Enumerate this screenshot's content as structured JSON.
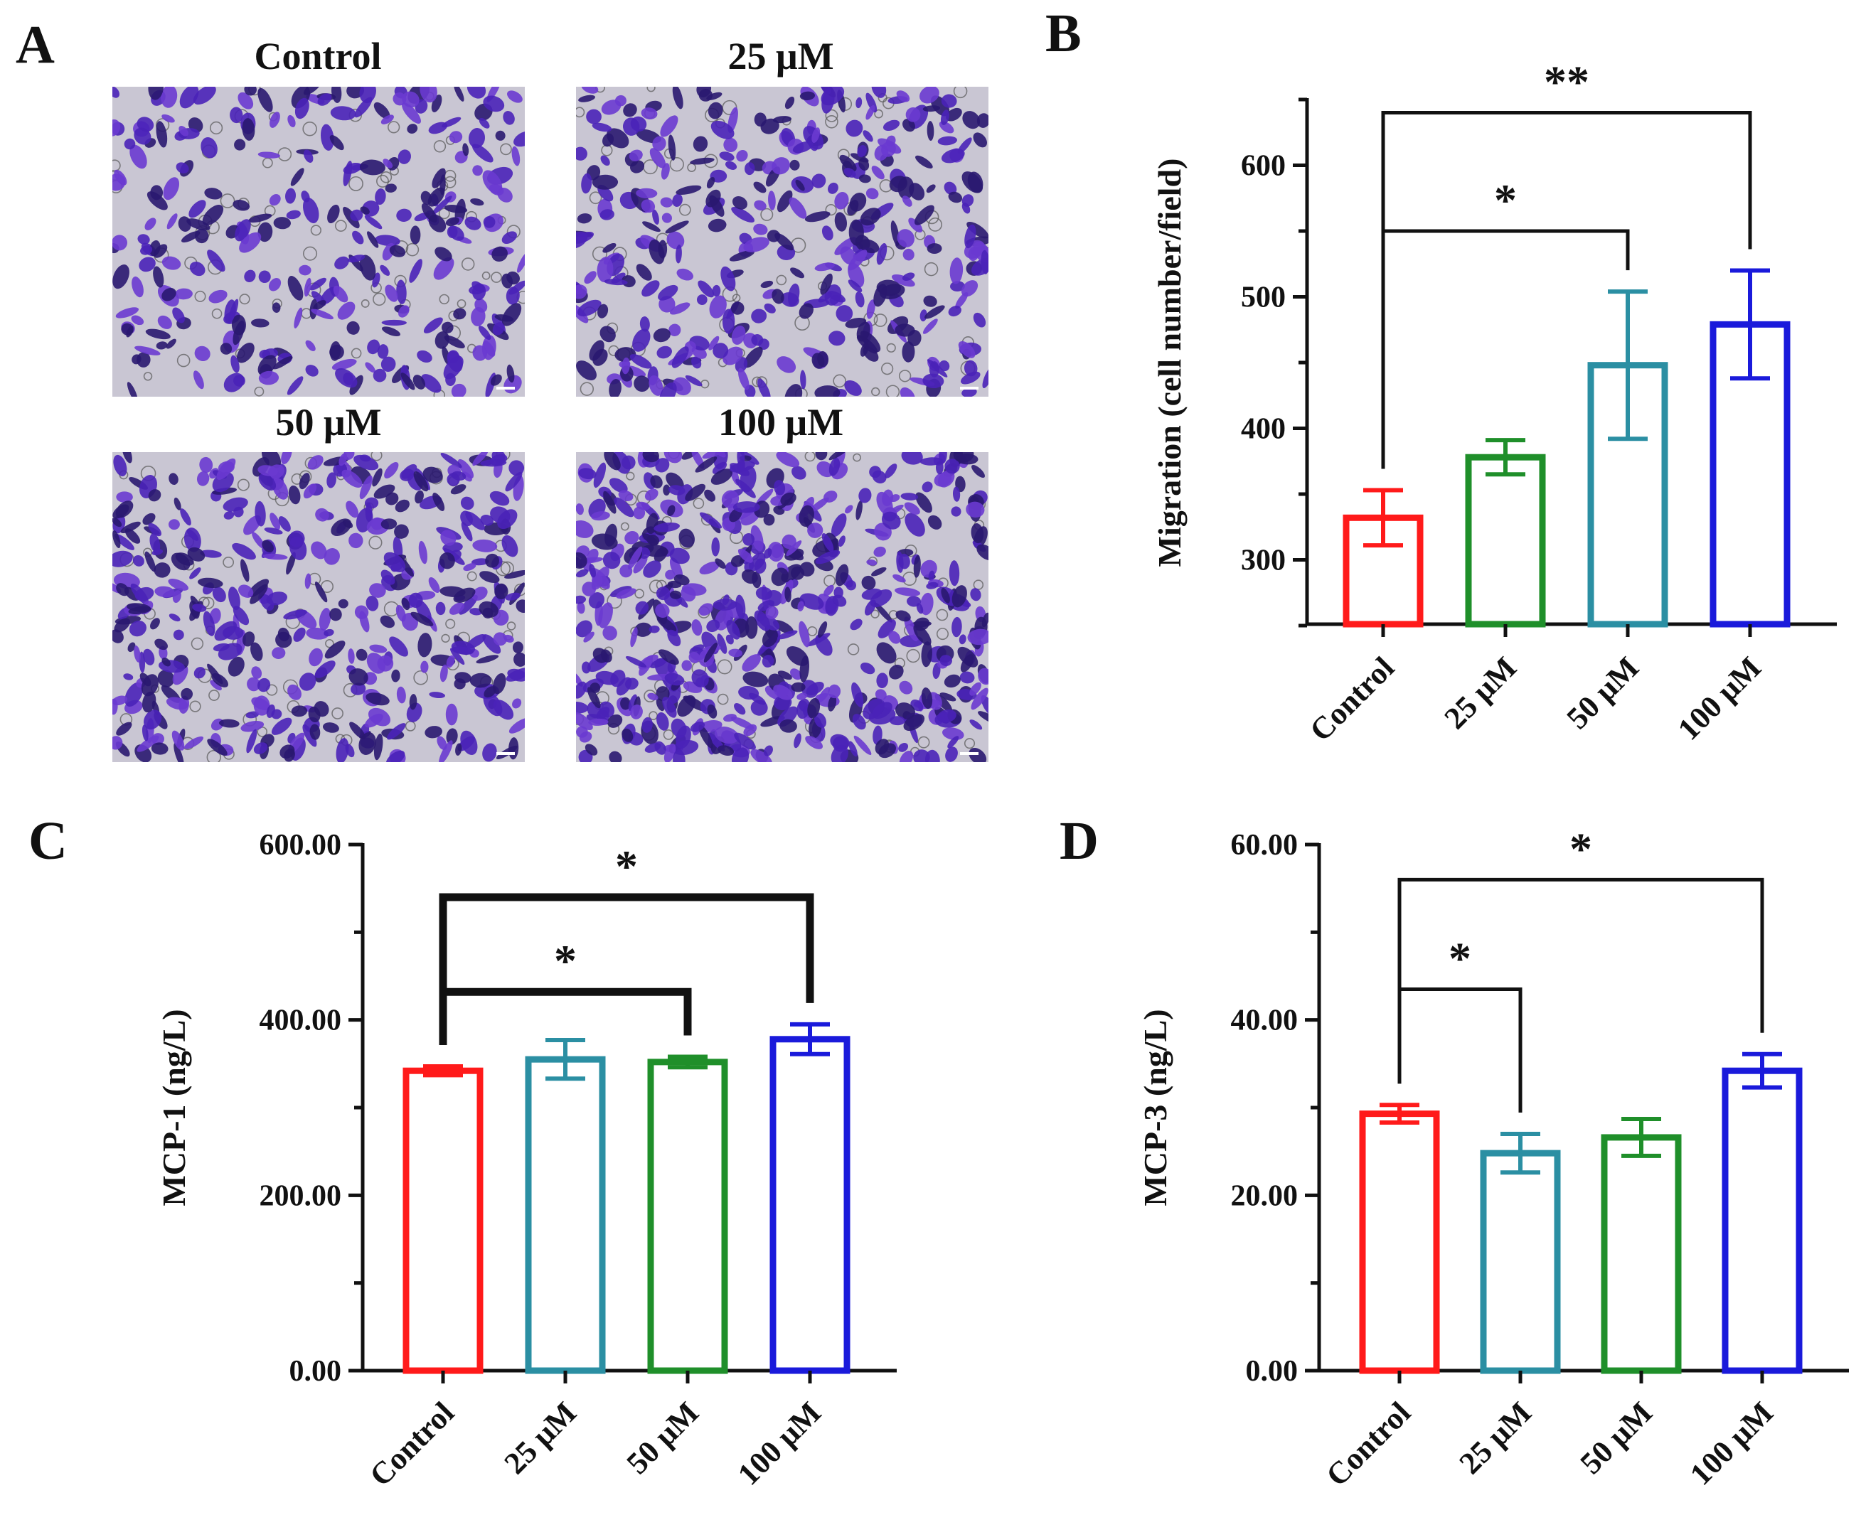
{
  "panels": {
    "A": {
      "letter": "A",
      "images": [
        {
          "label": "Control"
        },
        {
          "label": "25 μM"
        },
        {
          "label": "50 μM"
        },
        {
          "label": "100 μM"
        }
      ]
    },
    "B": {
      "letter": "B"
    },
    "C": {
      "letter": "C"
    },
    "D": {
      "letter": "D"
    }
  },
  "colors": {
    "control": "#ff1a1a",
    "green": "#1f8f2a",
    "teal": "#2b8fa3",
    "blue": "#1a1adb",
    "micrograph_bg": "#c9c6d3",
    "cell_stain": "#4a22b8"
  },
  "chart_data": [
    {
      "panel": "B",
      "type": "bar",
      "categories": [
        "Control",
        "25 μM",
        "50 μM",
        "100 μM"
      ],
      "values": [
        332,
        378,
        448,
        479
      ],
      "errors": [
        21,
        13,
        56,
        41
      ],
      "bar_colors": [
        "#ff1a1a",
        "#1f8f2a",
        "#2b8fa3",
        "#1a1adb"
      ],
      "ylabel": "Migration (cell number/field)",
      "xlabel": "",
      "ylim": [
        250,
        650
      ],
      "yticks": [
        300,
        400,
        500,
        600
      ],
      "ytick_labels": [
        "300",
        "400",
        "500",
        "600"
      ],
      "significance": [
        {
          "from": 0,
          "to": 2,
          "label": "*",
          "y": 550
        },
        {
          "from": 0,
          "to": 3,
          "label": "**",
          "y": 640
        }
      ]
    },
    {
      "panel": "C",
      "type": "bar",
      "categories": [
        "Control",
        "25 μM",
        "50 μM",
        "100 μM"
      ],
      "values": [
        342,
        355,
        352,
        378
      ],
      "errors": [
        5,
        22,
        6,
        17
      ],
      "bar_colors": [
        "#ff1a1a",
        "#2b8fa3",
        "#1f8f2a",
        "#1a1adb"
      ],
      "ylabel": "MCP-1 (ng/L)",
      "xlabel": "",
      "ylim": [
        0,
        600
      ],
      "yticks": [
        0,
        200,
        400,
        600
      ],
      "ytick_labels": [
        "0.00",
        "200.00",
        "400.00",
        "600.00"
      ],
      "significance": [
        {
          "from": 0,
          "to": 2,
          "label": "*",
          "y": 432
        },
        {
          "from": 0,
          "to": 3,
          "label": "*",
          "y": 540
        }
      ]
    },
    {
      "panel": "D",
      "type": "bar",
      "categories": [
        "Control",
        "25 μM",
        "50 μM",
        "100 μM"
      ],
      "values": [
        29.3,
        24.8,
        26.6,
        34.2
      ],
      "errors": [
        1.0,
        2.2,
        2.1,
        1.9
      ],
      "bar_colors": [
        "#ff1a1a",
        "#2b8fa3",
        "#1f8f2a",
        "#1a1adb"
      ],
      "ylabel": "MCP-3 (ng/L)",
      "xlabel": "",
      "ylim": [
        0,
        60
      ],
      "yticks": [
        0,
        20,
        40,
        60
      ],
      "ytick_labels": [
        "0.00",
        "20.00",
        "40.00",
        "60.00"
      ],
      "significance": [
        {
          "from": 0,
          "to": 1,
          "label": "*",
          "y": 43.5
        },
        {
          "from": 0,
          "to": 3,
          "label": "*",
          "y": 56
        }
      ]
    }
  ]
}
